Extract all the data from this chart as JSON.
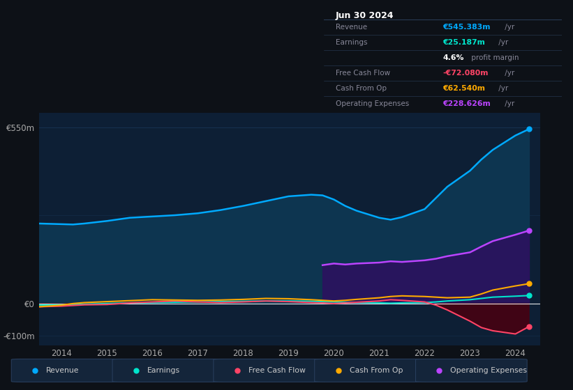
{
  "background_color": "#0d1117",
  "plot_bg_color": "#0d1f35",
  "years": [
    2013.5,
    2014.0,
    2014.25,
    2014.5,
    2015.0,
    2015.5,
    2016.0,
    2016.5,
    2017.0,
    2017.5,
    2018.0,
    2018.5,
    2019.0,
    2019.5,
    2019.75,
    2020.0,
    2020.25,
    2020.5,
    2021.0,
    2021.25,
    2021.5,
    2022.0,
    2022.25,
    2022.5,
    2023.0,
    2023.25,
    2023.5,
    2024.0,
    2024.3
  ],
  "revenue": [
    250,
    248,
    247,
    250,
    258,
    268,
    272,
    276,
    282,
    292,
    305,
    320,
    335,
    340,
    338,
    325,
    305,
    290,
    268,
    262,
    270,
    295,
    330,
    365,
    415,
    450,
    480,
    525,
    545
  ],
  "earnings": [
    -5,
    -4,
    -3,
    -2,
    0,
    2,
    3,
    4,
    5,
    6,
    7,
    8,
    8,
    7,
    6,
    5,
    4,
    3,
    2,
    1,
    2,
    3,
    5,
    8,
    12,
    16,
    20,
    23,
    25
  ],
  "free_cash_flow": [
    -10,
    -8,
    -6,
    -4,
    -3,
    2,
    5,
    8,
    5,
    3,
    5,
    8,
    6,
    3,
    2,
    0,
    2,
    4,
    8,
    12,
    10,
    5,
    -5,
    -20,
    -55,
    -75,
    -85,
    -95,
    -72
  ],
  "cash_from_op": [
    -10,
    -5,
    0,
    3,
    6,
    9,
    12,
    11,
    10,
    11,
    13,
    16,
    15,
    12,
    10,
    8,
    10,
    13,
    18,
    22,
    24,
    22,
    20,
    18,
    20,
    30,
    42,
    55,
    62
  ],
  "opex_years": [
    2019.75,
    2020.0,
    2020.25,
    2020.5,
    2021.0,
    2021.25,
    2021.5,
    2022.0,
    2022.25,
    2022.5,
    2023.0,
    2023.25,
    2023.5,
    2024.0,
    2024.3
  ],
  "opex_values": [
    120,
    125,
    122,
    125,
    128,
    132,
    130,
    135,
    140,
    148,
    160,
    178,
    195,
    215,
    228
  ],
  "ylim": [
    -130,
    595
  ],
  "xlim": [
    2013.5,
    2024.55
  ],
  "yticks_pos": [
    -100,
    0,
    550
  ],
  "ytick_labels": [
    "-€100m",
    "€0",
    "€550m"
  ],
  "xticks": [
    2014,
    2015,
    2016,
    2017,
    2018,
    2019,
    2020,
    2021,
    2022,
    2023,
    2024
  ],
  "legend": [
    {
      "label": "Revenue",
      "color": "#00aaff"
    },
    {
      "label": "Earnings",
      "color": "#00e5cc"
    },
    {
      "label": "Free Cash Flow",
      "color": "#ff4466"
    },
    {
      "label": "Cash From Op",
      "color": "#ffaa00"
    },
    {
      "label": "Operating Expenses",
      "color": "#bb44ff"
    }
  ],
  "revenue_line_color": "#00aaff",
  "revenue_fill_color": "#0d3550",
  "earnings_line_color": "#00e5cc",
  "fcf_line_color": "#ff4466",
  "fcf_fill_color": "#4a0010",
  "cfo_line_color": "#ffaa00",
  "opex_line_color": "#bb44ff",
  "opex_fill_color": "#2d1060",
  "zero_line_color": "#ffffff",
  "grid_line_color": "#1a3a5c",
  "info_box": {
    "date": "Jun 30 2024",
    "rows": [
      {
        "label": "Revenue",
        "value": "€545.383m",
        "unit": " /yr",
        "value_color": "#00aaff"
      },
      {
        "label": "Earnings",
        "value": "€25.187m",
        "unit": " /yr",
        "value_color": "#00e5cc"
      },
      {
        "label": "",
        "value": "4.6%",
        "unit": " profit margin",
        "value_color": "#ffffff"
      },
      {
        "label": "Free Cash Flow",
        "value": "-€72.080m",
        "unit": " /yr",
        "value_color": "#ff4466"
      },
      {
        "label": "Cash From Op",
        "value": "€62.540m",
        "unit": " /yr",
        "value_color": "#ffaa00"
      },
      {
        "label": "Operating Expenses",
        "value": "€228.626m",
        "unit": " /yr",
        "value_color": "#bb44ff"
      }
    ]
  }
}
